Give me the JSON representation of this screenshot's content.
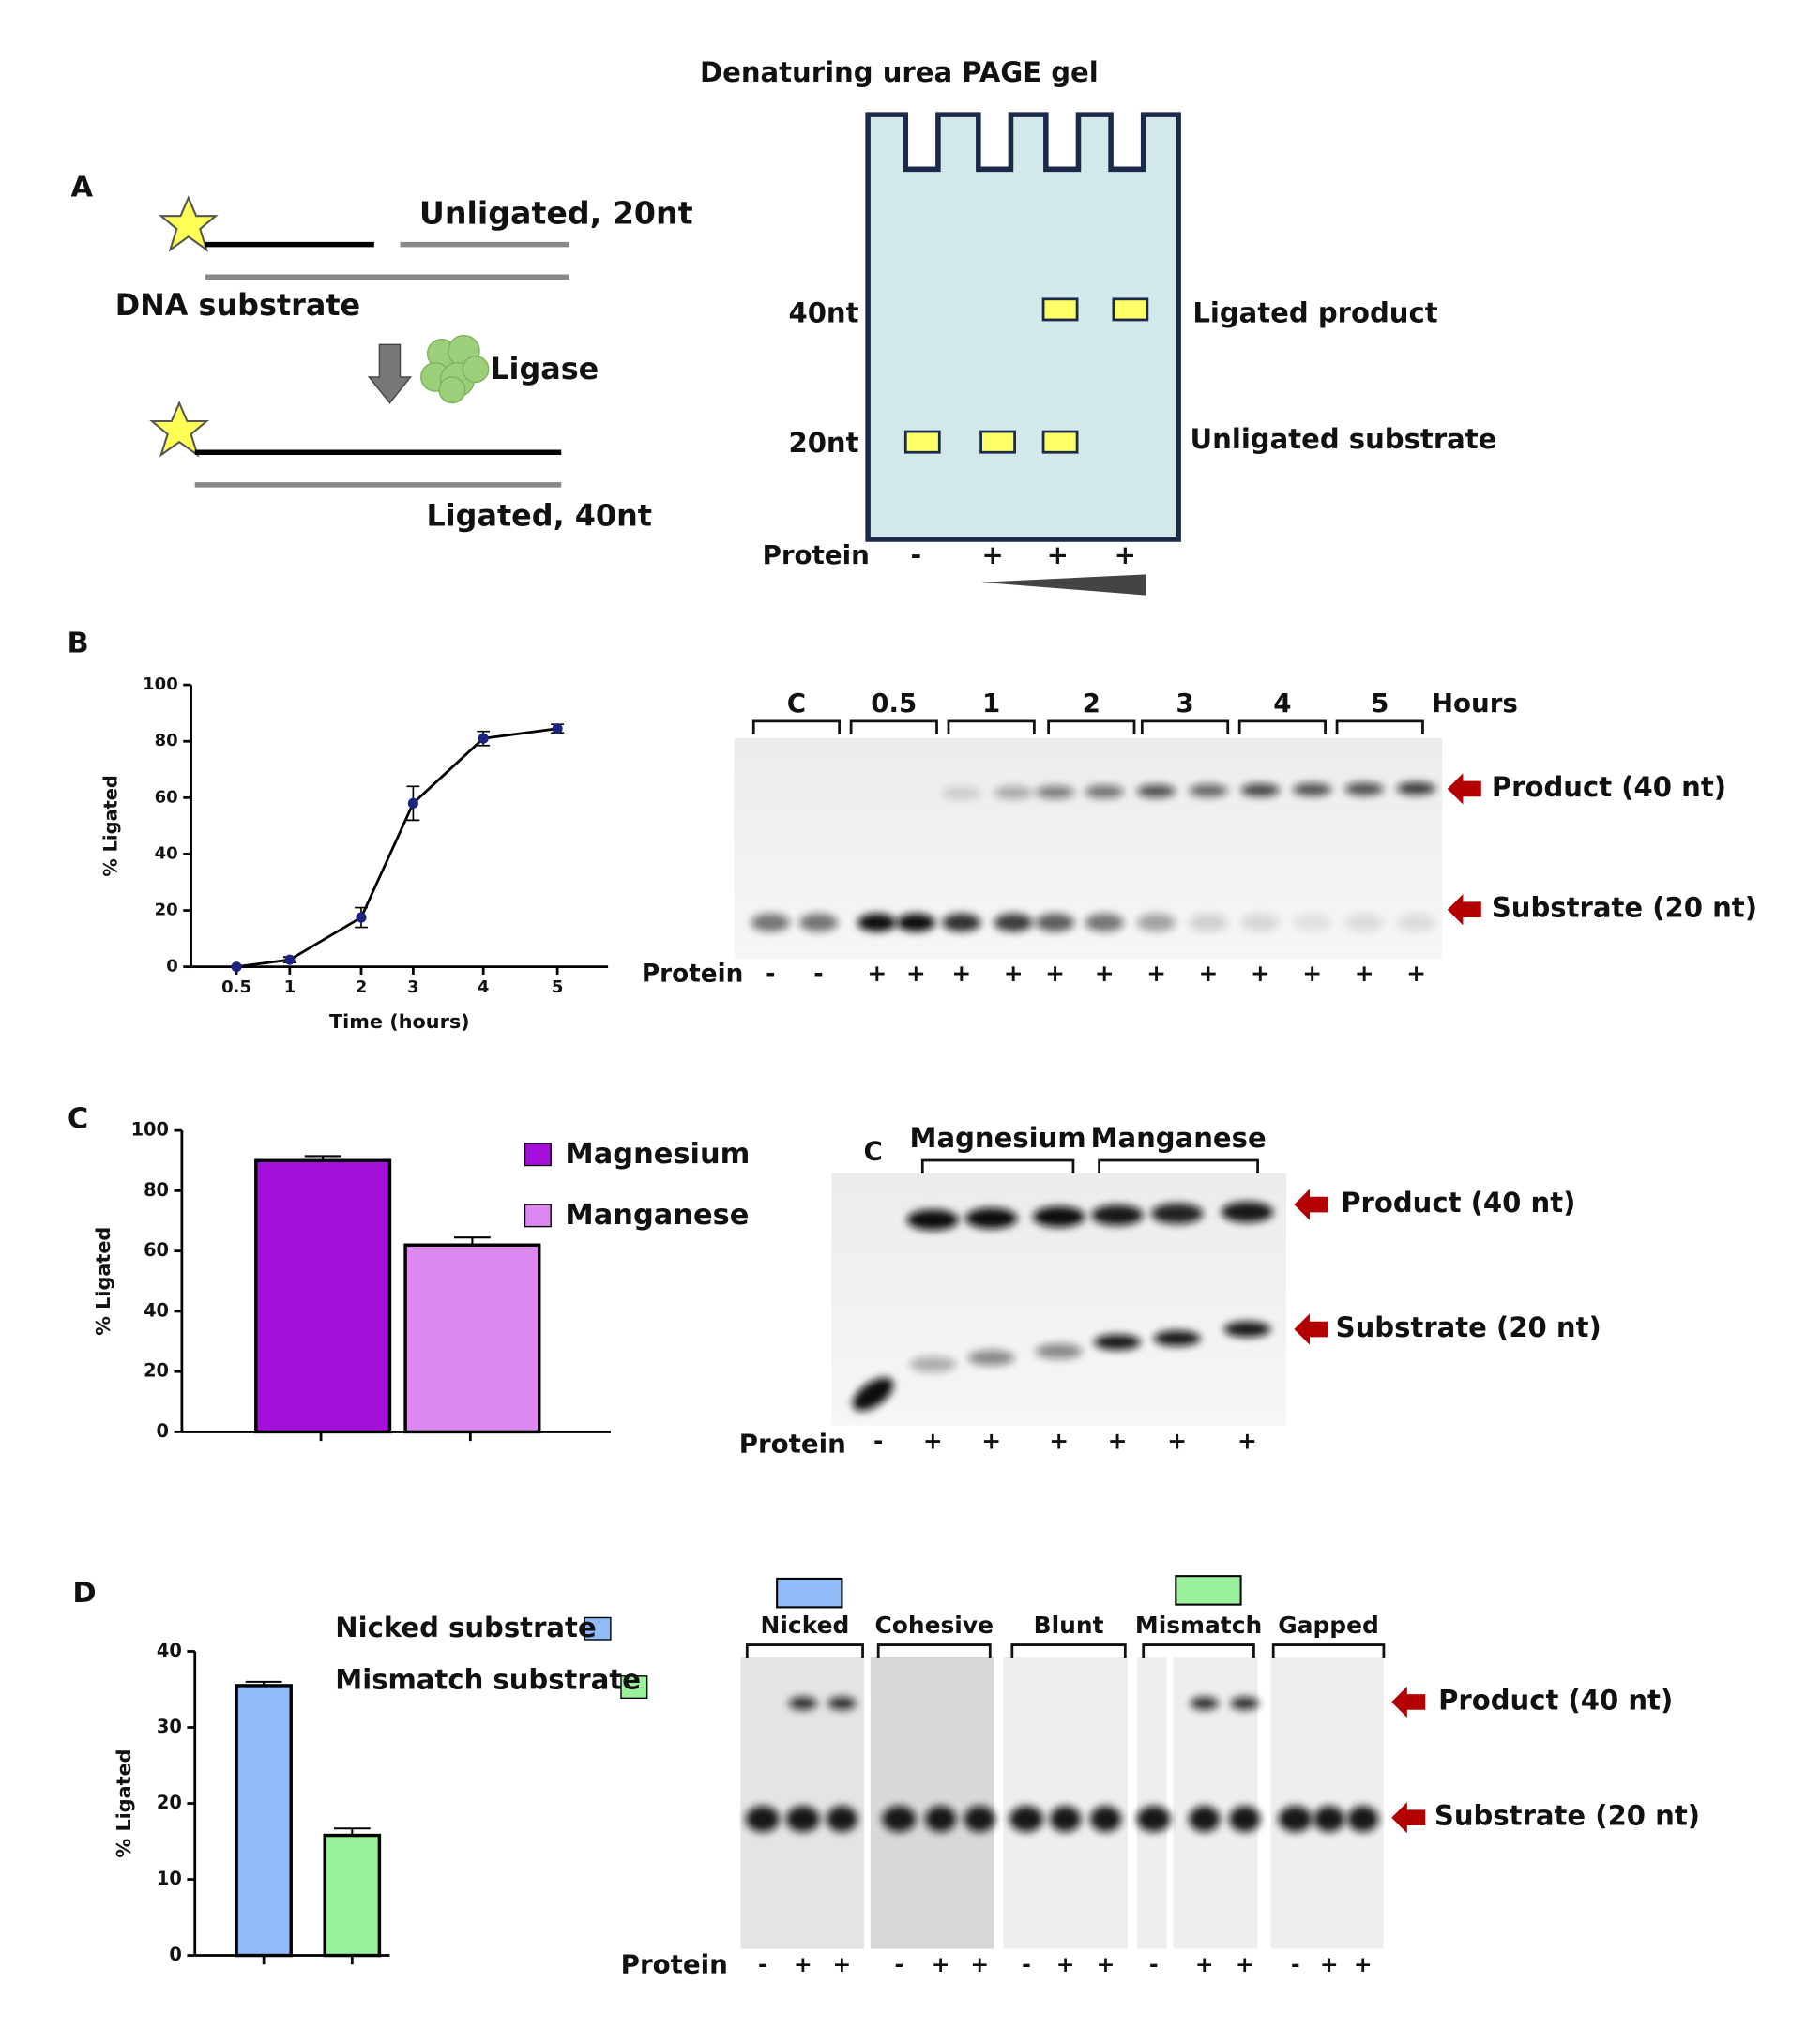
{
  "panel_labels": [
    "A",
    "B",
    "C",
    "D"
  ],
  "panel_a": {
    "title": "Denaturing urea PAGE gel",
    "unligated": "Unligated, 20nt",
    "dna_substrate": "DNA substrate",
    "ligase": "Ligase",
    "ligated": "Ligated, 40nt",
    "size_40": "40nt",
    "size_20": "20nt",
    "ligated_product": "Ligated product",
    "unligated_substrate": "Unligated substrate",
    "protein": "Protein",
    "signs": [
      "-",
      "+",
      "+",
      "+"
    ]
  },
  "gel_b": {
    "lanes": [
      "C",
      "0.5",
      "1",
      "2",
      "3",
      "4",
      "5"
    ],
    "unit": "Hours",
    "product": "Product (40 nt)",
    "substrate": "Substrate (20 nt)",
    "protein": "Protein",
    "signs": [
      "-",
      "-",
      "+",
      "+",
      "+",
      "+",
      "+",
      "+",
      "+",
      "+",
      "+",
      "+",
      "+",
      "+"
    ]
  },
  "gel_c": {
    "control": "C",
    "groups": [
      "Magnesium",
      "Manganese"
    ],
    "product": "Product (40 nt)",
    "substrate": "Substrate (20 nt)",
    "protein": "Protein",
    "signs": [
      "-",
      "+",
      "+",
      "+",
      "+",
      "+",
      "+"
    ]
  },
  "gel_d": {
    "groups": [
      "Nicked",
      "Cohesive",
      "Blunt",
      "Mismatch",
      "Gapped"
    ],
    "product": "Product (40 nt)",
    "substrate": "Substrate (20 nt)",
    "protein": "Protein",
    "signs": [
      "-",
      "+",
      "+",
      "-",
      "+",
      "+",
      "-",
      "+",
      "+",
      "-",
      "+",
      "+",
      "-",
      "+",
      "+"
    ]
  },
  "chart_data": [
    {
      "type": "line",
      "x_label": "Time (hours)",
      "y_label": "% Ligated",
      "categories": [
        "0.5",
        "1",
        "2",
        "3",
        "4",
        "5"
      ],
      "series": [
        {
          "color": "#1a237e",
          "values": [
            0,
            2.5,
            17.5,
            58,
            81,
            84.5
          ],
          "errors": [
            0,
            1,
            3.5,
            6,
            2.5,
            1.5
          ]
        }
      ],
      "ylim": [
        0,
        100
      ],
      "yticks": [
        0,
        20,
        40,
        60,
        80,
        100
      ]
    },
    {
      "type": "bar",
      "y_label": "% Ligated",
      "categories": [
        null
      ],
      "series": [
        {
          "name": "Magnesium",
          "color": "#a50fdc",
          "values": [
            90
          ],
          "errors": [
            1.5
          ]
        },
        {
          "name": "Manganese",
          "color": "#dc88f0",
          "values": [
            62
          ],
          "errors": [
            2.5
          ]
        }
      ],
      "ylim": [
        0,
        100
      ],
      "yticks": [
        0,
        20,
        40,
        60,
        80,
        100
      ],
      "legend": "right"
    },
    {
      "type": "bar",
      "y_label": "% Ligated",
      "categories": [
        null
      ],
      "series": [
        {
          "name": "Nicked substrate",
          "color": "#8fbcf8",
          "values": [
            35.5
          ],
          "errors": [
            0.5
          ]
        },
        {
          "name": "Mismatch substrate",
          "color": "#99f29b",
          "values": [
            15.8
          ],
          "errors": [
            0.9
          ]
        }
      ],
      "ylim": [
        0,
        40
      ],
      "yticks": [
        0,
        10,
        20,
        30,
        40
      ],
      "legend": "top-right"
    }
  ]
}
